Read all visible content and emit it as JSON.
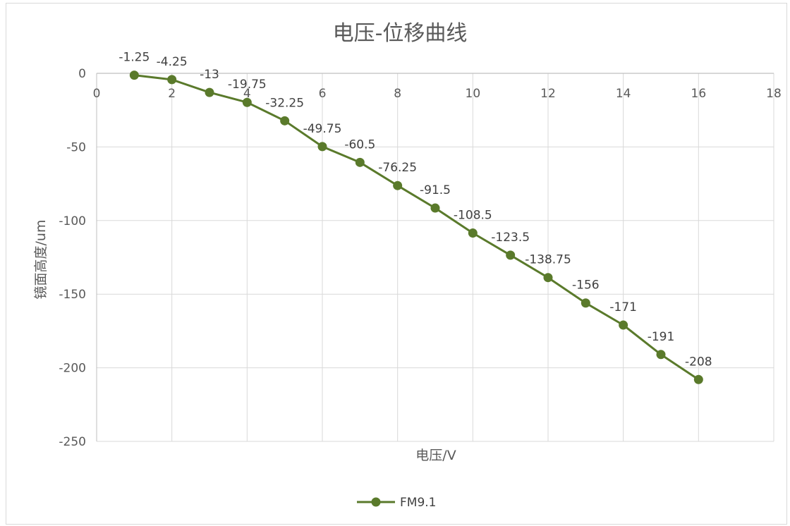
{
  "chart_data": {
    "type": "scatter",
    "title": "电压-位移曲线",
    "xlabel": "电压/V",
    "ylabel": "镜面高度/um",
    "xlim": [
      0,
      18
    ],
    "ylim": [
      -250,
      0
    ],
    "x_ticks": [
      "0",
      "2",
      "4",
      "6",
      "8",
      "10",
      "12",
      "14",
      "16",
      "18"
    ],
    "y_ticks": [
      "0",
      "-50",
      "-100",
      "-150",
      "-200",
      "-250"
    ],
    "grid": true,
    "legend_position": "bottom",
    "series": [
      {
        "name": "FM9.1",
        "color": "#5a7a2b",
        "x": [
          1,
          2,
          3,
          4,
          5,
          6,
          7,
          8,
          9,
          10,
          11,
          12,
          13,
          14,
          15,
          16
        ],
        "y": [
          -1.25,
          -4.25,
          -13,
          -19.75,
          -32.25,
          -49.75,
          -60.5,
          -76.25,
          -91.5,
          -108.5,
          -123.5,
          -138.75,
          -156,
          -171,
          -191,
          -208
        ],
        "labels": [
          "-1.25",
          "-4.25",
          "-13",
          "-19.75",
          "-32.25",
          "-49.75",
          "-60.5",
          "-76.25",
          "-91.5",
          "-108.5",
          "-123.5",
          "-138.75",
          "-156",
          "-171",
          "-191",
          "-208"
        ]
      }
    ]
  }
}
